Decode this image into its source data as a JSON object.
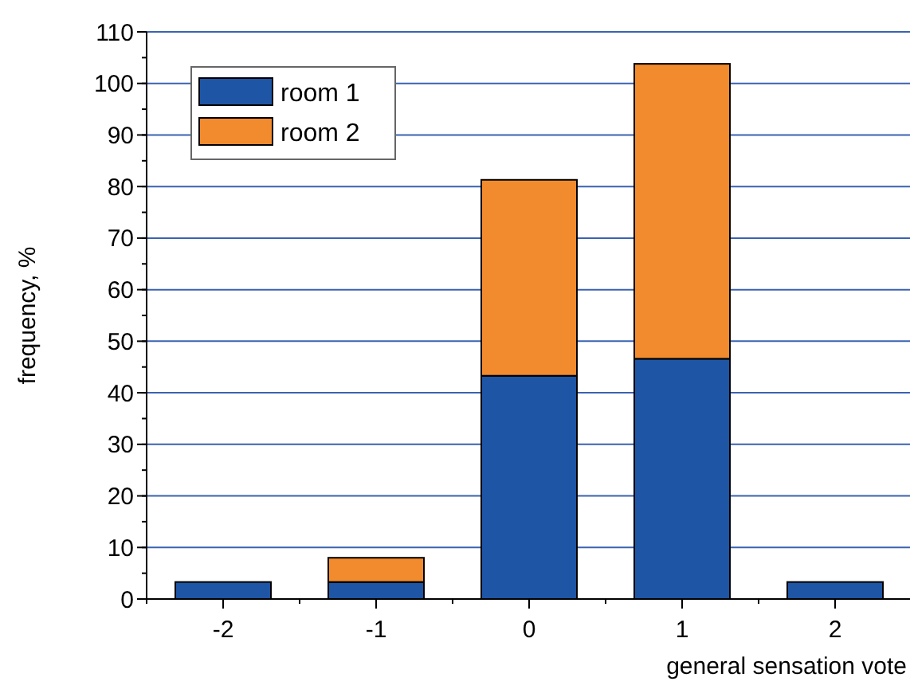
{
  "chart_data": {
    "type": "bar",
    "stacked": true,
    "xlabel": "general sensation vote",
    "ylabel": "frequency, %",
    "categories": [
      "-2",
      "-1",
      "0",
      "1",
      "2"
    ],
    "series": [
      {
        "name": "room 1",
        "color": "#1f55a5",
        "values": [
          3.3,
          3.3,
          43.3,
          46.6,
          3.3
        ]
      },
      {
        "name": "room 2",
        "color": "#f28a2e",
        "values": [
          null,
          4.7,
          38.0,
          57.2,
          null
        ]
      }
    ],
    "ylim": [
      0,
      110
    ],
    "yticks": [
      0,
      10,
      20,
      30,
      40,
      50,
      60,
      70,
      80,
      90,
      100,
      110
    ],
    "grid": "y",
    "legend": "top left"
  }
}
